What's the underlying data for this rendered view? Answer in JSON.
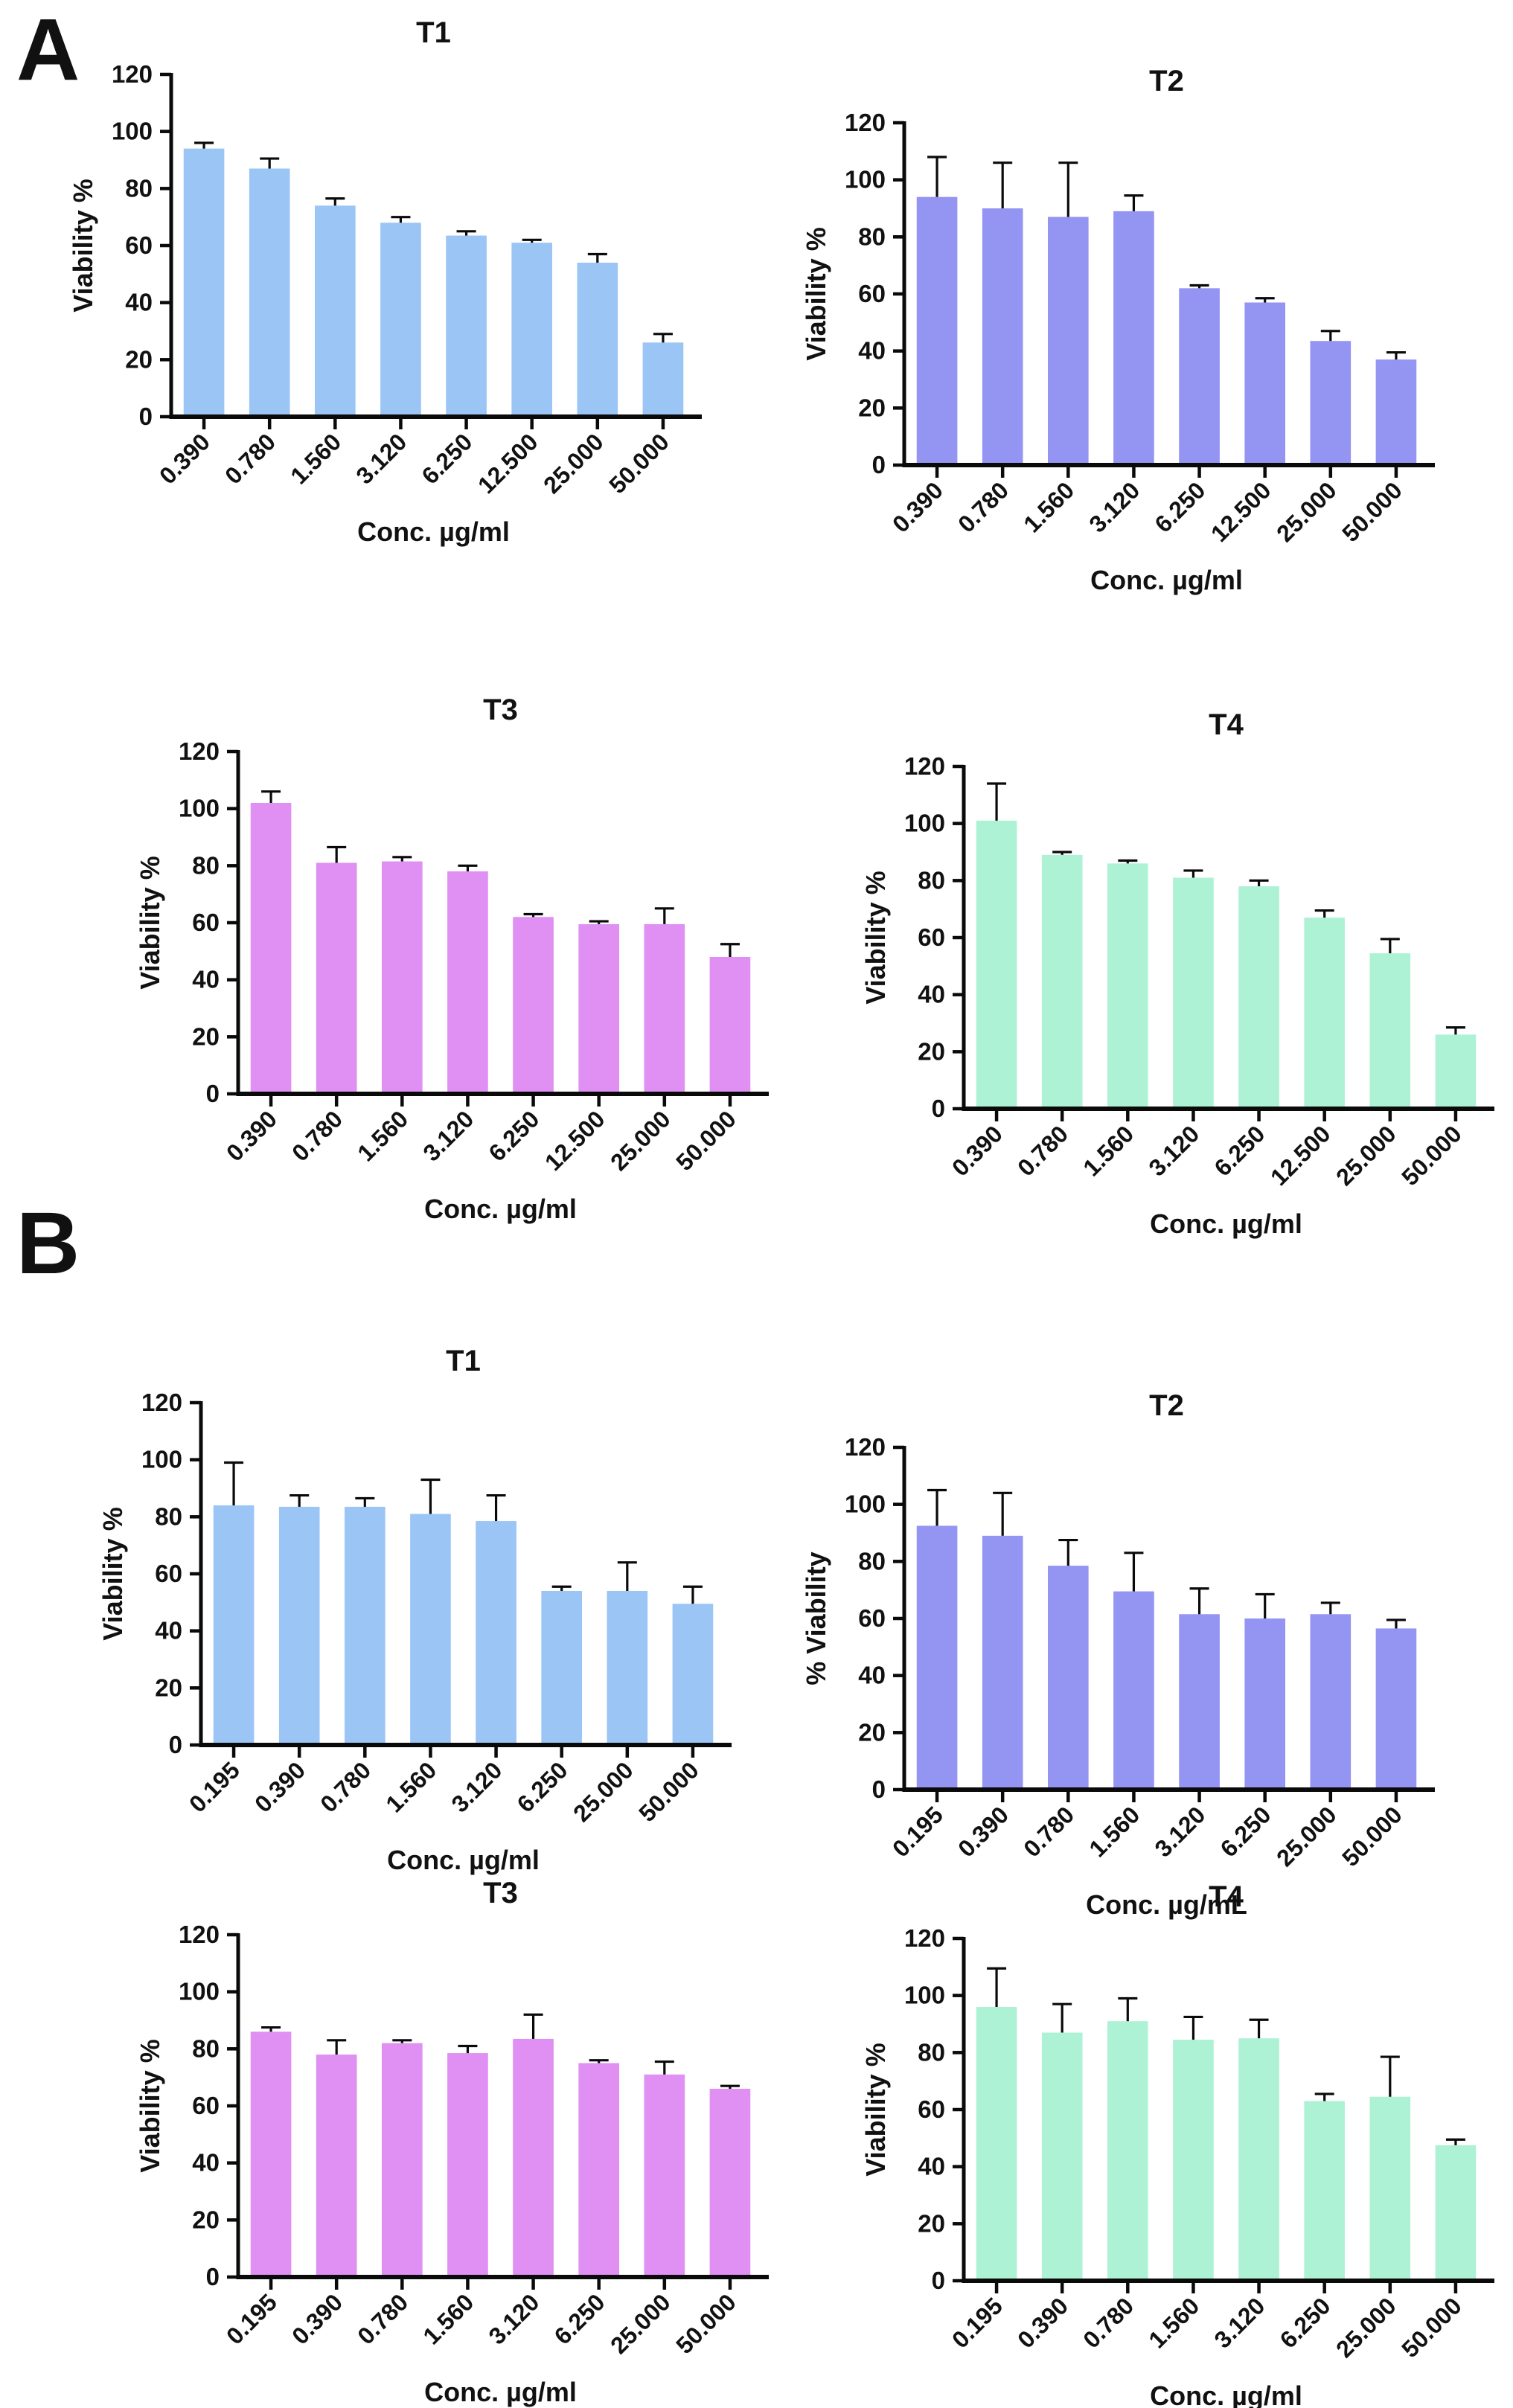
{
  "panels": [
    {
      "label": "A"
    },
    {
      "label": "B"
    }
  ],
  "chart_data": [
    {
      "panel": "A",
      "type": "bar",
      "title": "T1",
      "xlabel": "Conc. µg/ml",
      "ylabel": "Viability %",
      "categories": [
        "0.390",
        "0.780",
        "1.560",
        "3.120",
        "6.250",
        "12.500",
        "25.000",
        "50.000"
      ],
      "values": [
        94,
        87,
        74,
        68,
        63.5,
        61,
        54,
        26
      ],
      "errors": [
        2,
        3.5,
        2.5,
        2,
        1.5,
        1,
        3,
        3
      ],
      "ylim": [
        0,
        120
      ],
      "yticks": [
        0,
        20,
        40,
        60,
        80,
        100,
        120
      ],
      "bar_color": "#9BC5F5"
    },
    {
      "panel": "A",
      "type": "bar",
      "title": "T2",
      "xlabel": "Conc. µg/ml",
      "ylabel": "Viability %",
      "categories": [
        "0.390",
        "0.780",
        "1.560",
        "3.120",
        "6.250",
        "12.500",
        "25.000",
        "50.000"
      ],
      "values": [
        94,
        90,
        87,
        89,
        62,
        57,
        43.5,
        37
      ],
      "errors": [
        14,
        16,
        19,
        5.5,
        1,
        1.5,
        3.5,
        2.5
      ],
      "ylim": [
        0,
        120
      ],
      "yticks": [
        0,
        20,
        40,
        60,
        80,
        100,
        120
      ],
      "bar_color": "#9494F2"
    },
    {
      "panel": "A",
      "type": "bar",
      "title": "T3",
      "xlabel": "Conc. µg/ml",
      "ylabel": "Viability %",
      "categories": [
        "0.390",
        "0.780",
        "1.560",
        "3.120",
        "6.250",
        "12.500",
        "25.000",
        "50.000"
      ],
      "values": [
        102,
        81,
        81.5,
        78,
        62,
        59.5,
        59.5,
        48
      ],
      "errors": [
        4,
        5.5,
        1.5,
        2,
        1,
        1,
        5.5,
        4.5
      ],
      "ylim": [
        0,
        120
      ],
      "yticks": [
        0,
        20,
        40,
        60,
        80,
        100,
        120
      ],
      "bar_color": "#E08FF2"
    },
    {
      "panel": "A",
      "type": "bar",
      "title": "T4",
      "xlabel": "Conc. µg/ml",
      "ylabel": "Viability %",
      "categories": [
        "0.390",
        "0.780",
        "1.560",
        "3.120",
        "6.250",
        "12.500",
        "25.000",
        "50.000"
      ],
      "values": [
        101,
        89,
        86,
        81,
        78,
        67,
        54.5,
        26
      ],
      "errors": [
        13,
        1,
        1,
        2.5,
        2,
        2.5,
        5,
        2.5
      ],
      "ylim": [
        0,
        120
      ],
      "yticks": [
        0,
        20,
        40,
        60,
        80,
        100,
        120
      ],
      "bar_color": "#AEF2D6"
    },
    {
      "panel": "B",
      "type": "bar",
      "title": "T1",
      "xlabel": "Conc. µg/ml",
      "ylabel": "Viability %",
      "categories": [
        "0.195",
        "0.390",
        "0.780",
        "1.560",
        "3.120",
        "6.250",
        "25.000",
        "50.000"
      ],
      "values": [
        84,
        83.5,
        83.5,
        81,
        78.5,
        54,
        54,
        49.5
      ],
      "errors": [
        15,
        4,
        3,
        12,
        9,
        1.5,
        10,
        6
      ],
      "ylim": [
        0,
        120
      ],
      "yticks": [
        0,
        20,
        40,
        60,
        80,
        100,
        120
      ],
      "bar_color": "#9BC5F5"
    },
    {
      "panel": "B",
      "type": "bar",
      "title": "T2",
      "xlabel": "Conc. µg/mL",
      "ylabel": "% Viability",
      "categories": [
        "0.195",
        "0.390",
        "0.780",
        "1.560",
        "3.120",
        "6.250",
        "25.000",
        "50.000"
      ],
      "values": [
        92.5,
        89,
        78.5,
        69.5,
        61.5,
        60,
        61.5,
        56.5
      ],
      "errors": [
        12.5,
        15,
        9,
        13.5,
        9,
        8.5,
        4,
        3
      ],
      "ylim": [
        0,
        120
      ],
      "yticks": [
        0,
        20,
        40,
        60,
        80,
        100,
        120
      ],
      "bar_color": "#9494F2"
    },
    {
      "panel": "B",
      "type": "bar",
      "title": "T3",
      "xlabel": "Conc. µg/ml",
      "ylabel": "Viability %",
      "categories": [
        "0.195",
        "0.390",
        "0.780",
        "1.560",
        "3.120",
        "6.250",
        "25.000",
        "50.000"
      ],
      "values": [
        86,
        78,
        82,
        78.5,
        83.5,
        75,
        71,
        66
      ],
      "errors": [
        1.5,
        5,
        1,
        2.5,
        8.5,
        1,
        4.5,
        1
      ],
      "ylim": [
        0,
        120
      ],
      "yticks": [
        0,
        20,
        40,
        60,
        80,
        100,
        120
      ],
      "bar_color": "#E08FF2"
    },
    {
      "panel": "B",
      "type": "bar",
      "title": "T4",
      "xlabel": "Conc. µg/ml",
      "ylabel": "Viability %",
      "categories": [
        "0.195",
        "0.390",
        "0.780",
        "1.560",
        "3.120",
        "6.250",
        "25.000",
        "50.000"
      ],
      "values": [
        96,
        87,
        91,
        84.5,
        85,
        63,
        64.5,
        47.5
      ],
      "errors": [
        13.5,
        10,
        8,
        8,
        6.5,
        2.5,
        14,
        2
      ],
      "ylim": [
        0,
        120
      ],
      "yticks": [
        0,
        20,
        40,
        60,
        80,
        100,
        120
      ],
      "bar_color": "#AEF2D6"
    }
  ],
  "style": {
    "axis_color": "#0a0a0a",
    "text_color": "#111111",
    "background": "#ffffff"
  }
}
